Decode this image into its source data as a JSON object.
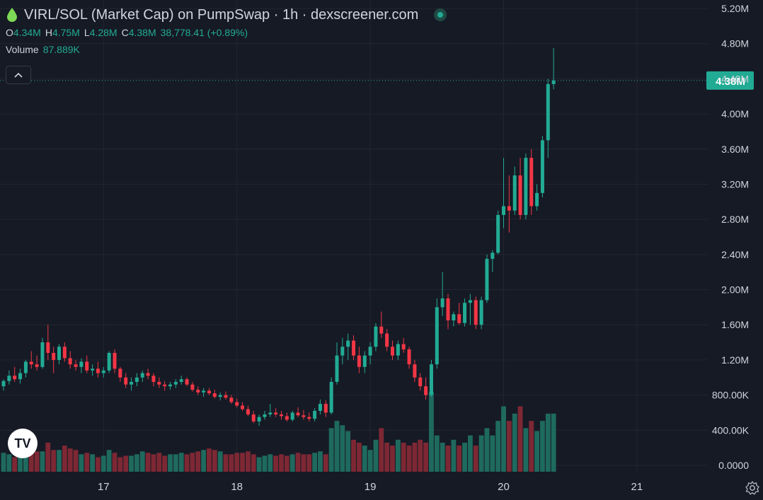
{
  "header": {
    "title": "VIRL/SOL (Market Cap) on PumpSwap · 1h · dexscreener.com",
    "ohlc": [
      {
        "k": "O",
        "v": "4.34M"
      },
      {
        "k": "H",
        "v": "4.75M"
      },
      {
        "k": "L",
        "v": "4.28M"
      },
      {
        "k": "C",
        "v": "4.38M"
      }
    ],
    "change": "38,778.41 (+0.89%)",
    "volume_label": "Volume",
    "volume_value": "87.889K"
  },
  "price_tag": "4.38M",
  "logo_text": "TV",
  "colors": {
    "up": "#22ab94",
    "down": "#f23645",
    "vol_up": "#1f6a5e",
    "vol_down": "#7d2834",
    "tag": "#22ab94"
  },
  "chart_data": {
    "type": "candlestick",
    "interval": "1h",
    "y_ticks": [
      "5.20M",
      "4.80M",
      "4.40M",
      "4.00M",
      "3.60M",
      "3.20M",
      "2.80M",
      "2.40M",
      "2.00M",
      "1.60M",
      "1.20M",
      "800.00K",
      "400.00K",
      "0.0000"
    ],
    "y_tick_values": [
      5.2,
      4.8,
      4.4,
      4.0,
      3.6,
      3.2,
      2.8,
      2.4,
      2.0,
      1.6,
      1.2,
      0.8,
      0.4,
      0.0
    ],
    "x_ticks": [
      {
        "label": "17",
        "i": 18
      },
      {
        "label": "18",
        "i": 42
      },
      {
        "label": "19",
        "i": 66
      },
      {
        "label": "20",
        "i": 90
      },
      {
        "label": "21",
        "i": 114
      }
    ],
    "last_close": 4.38,
    "candles": [
      [
        0.9,
        0.98,
        0.85,
        0.96
      ],
      [
        0.96,
        1.08,
        0.92,
        1.02
      ],
      [
        1.02,
        1.12,
        0.95,
        0.98
      ],
      [
        0.98,
        1.1,
        0.93,
        1.05
      ],
      [
        1.05,
        1.2,
        1.0,
        1.18
      ],
      [
        1.18,
        1.3,
        1.1,
        1.15
      ],
      [
        1.15,
        1.25,
        1.08,
        1.12
      ],
      [
        1.12,
        1.45,
        1.1,
        1.4
      ],
      [
        1.4,
        1.6,
        1.2,
        1.28
      ],
      [
        1.28,
        1.35,
        1.05,
        1.2
      ],
      [
        1.2,
        1.38,
        1.15,
        1.35
      ],
      [
        1.35,
        1.4,
        1.18,
        1.22
      ],
      [
        1.22,
        1.3,
        1.1,
        1.15
      ],
      [
        1.15,
        1.2,
        1.08,
        1.12
      ],
      [
        1.12,
        1.22,
        1.05,
        1.18
      ],
      [
        1.18,
        1.25,
        1.05,
        1.08
      ],
      [
        1.08,
        1.15,
        1.02,
        1.1
      ],
      [
        1.1,
        1.18,
        1.0,
        1.05
      ],
      [
        1.05,
        1.12,
        1.0,
        1.08
      ],
      [
        1.08,
        1.3,
        1.05,
        1.28
      ],
      [
        1.28,
        1.32,
        1.05,
        1.1
      ],
      [
        1.1,
        1.12,
        0.95,
        1.0
      ],
      [
        1.0,
        1.05,
        0.88,
        0.92
      ],
      [
        0.92,
        1.0,
        0.85,
        0.95
      ],
      [
        0.95,
        1.05,
        0.9,
        1.0
      ],
      [
        1.0,
        1.08,
        0.95,
        1.05
      ],
      [
        1.05,
        1.1,
        0.98,
        1.02
      ],
      [
        1.02,
        1.05,
        0.9,
        0.95
      ],
      [
        0.95,
        1.0,
        0.88,
        0.92
      ],
      [
        0.92,
        0.96,
        0.85,
        0.9
      ],
      [
        0.9,
        0.95,
        0.86,
        0.92
      ],
      [
        0.92,
        0.98,
        0.88,
        0.95
      ],
      [
        0.95,
        1.02,
        0.92,
        0.98
      ],
      [
        0.98,
        1.0,
        0.9,
        0.92
      ],
      [
        0.92,
        0.95,
        0.84,
        0.86
      ],
      [
        0.86,
        0.9,
        0.8,
        0.83
      ],
      [
        0.83,
        0.88,
        0.78,
        0.85
      ],
      [
        0.85,
        0.88,
        0.8,
        0.82
      ],
      [
        0.82,
        0.86,
        0.76,
        0.78
      ],
      [
        0.78,
        0.83,
        0.74,
        0.8
      ],
      [
        0.8,
        0.84,
        0.75,
        0.77
      ],
      [
        0.77,
        0.8,
        0.7,
        0.72
      ],
      [
        0.72,
        0.76,
        0.66,
        0.68
      ],
      [
        0.68,
        0.72,
        0.62,
        0.64
      ],
      [
        0.64,
        0.68,
        0.56,
        0.58
      ],
      [
        0.58,
        0.62,
        0.48,
        0.5
      ],
      [
        0.5,
        0.58,
        0.45,
        0.55
      ],
      [
        0.55,
        0.62,
        0.52,
        0.58
      ],
      [
        0.58,
        0.7,
        0.55,
        0.6
      ],
      [
        0.6,
        0.65,
        0.55,
        0.58
      ],
      [
        0.58,
        0.62,
        0.52,
        0.56
      ],
      [
        0.56,
        0.6,
        0.5,
        0.52
      ],
      [
        0.52,
        0.62,
        0.5,
        0.6
      ],
      [
        0.6,
        0.66,
        0.55,
        0.57
      ],
      [
        0.57,
        0.63,
        0.52,
        0.55
      ],
      [
        0.55,
        0.6,
        0.5,
        0.53
      ],
      [
        0.53,
        0.65,
        0.5,
        0.62
      ],
      [
        0.62,
        0.75,
        0.58,
        0.7
      ],
      [
        0.7,
        0.74,
        0.55,
        0.6
      ],
      [
        0.6,
        1.0,
        0.58,
        0.95
      ],
      [
        0.95,
        1.4,
        0.92,
        1.25
      ],
      [
        1.25,
        1.45,
        1.15,
        1.35
      ],
      [
        1.35,
        1.5,
        1.2,
        1.42
      ],
      [
        1.42,
        1.48,
        1.2,
        1.25
      ],
      [
        1.25,
        1.35,
        1.05,
        1.12
      ],
      [
        1.12,
        1.3,
        1.05,
        1.25
      ],
      [
        1.25,
        1.4,
        1.15,
        1.35
      ],
      [
        1.35,
        1.62,
        1.3,
        1.58
      ],
      [
        1.58,
        1.75,
        1.45,
        1.5
      ],
      [
        1.5,
        1.55,
        1.3,
        1.35
      ],
      [
        1.35,
        1.42,
        1.2,
        1.25
      ],
      [
        1.25,
        1.42,
        1.2,
        1.38
      ],
      [
        1.38,
        1.45,
        1.28,
        1.32
      ],
      [
        1.32,
        1.35,
        1.1,
        1.15
      ],
      [
        1.15,
        1.2,
        0.95,
        1.0
      ],
      [
        1.0,
        1.05,
        0.85,
        0.9
      ],
      [
        0.9,
        1.0,
        0.75,
        0.8
      ],
      [
        0.8,
        1.2,
        0.78,
        1.15
      ],
      [
        1.15,
        1.9,
        1.1,
        1.8
      ],
      [
        1.8,
        2.2,
        1.7,
        1.9
      ],
      [
        1.9,
        1.95,
        1.55,
        1.65
      ],
      [
        1.65,
        1.75,
        1.58,
        1.72
      ],
      [
        1.72,
        1.85,
        1.6,
        1.62
      ],
      [
        1.62,
        1.9,
        1.58,
        1.85
      ],
      [
        1.85,
        1.95,
        1.6,
        1.88
      ],
      [
        1.88,
        1.92,
        1.55,
        1.6
      ],
      [
        1.6,
        1.92,
        1.55,
        1.88
      ],
      [
        1.88,
        2.4,
        1.85,
        2.35
      ],
      [
        2.35,
        2.45,
        2.2,
        2.42
      ],
      [
        2.42,
        2.9,
        2.4,
        2.85
      ],
      [
        2.85,
        3.5,
        2.7,
        2.95
      ],
      [
        2.95,
        3.3,
        2.65,
        2.9
      ],
      [
        2.9,
        3.4,
        2.85,
        3.3
      ],
      [
        3.3,
        3.5,
        2.8,
        2.85
      ],
      [
        2.85,
        3.55,
        2.8,
        3.5
      ],
      [
        3.5,
        3.6,
        2.85,
        2.95
      ],
      [
        2.95,
        3.2,
        2.9,
        3.1
      ],
      [
        3.1,
        3.75,
        3.05,
        3.7
      ],
      [
        3.7,
        4.4,
        3.5,
        4.34
      ],
      [
        4.34,
        4.75,
        4.28,
        4.38
      ]
    ],
    "volumes": [
      0.13,
      0.12,
      0.1,
      0.12,
      0.15,
      0.2,
      0.14,
      0.14,
      0.2,
      0.15,
      0.15,
      0.18,
      0.16,
      0.15,
      0.12,
      0.13,
      0.12,
      0.1,
      0.11,
      0.15,
      0.13,
      0.1,
      0.11,
      0.11,
      0.12,
      0.14,
      0.13,
      0.12,
      0.13,
      0.11,
      0.12,
      0.12,
      0.13,
      0.12,
      0.13,
      0.14,
      0.15,
      0.16,
      0.15,
      0.14,
      0.12,
      0.12,
      0.13,
      0.13,
      0.14,
      0.12,
      0.1,
      0.11,
      0.12,
      0.11,
      0.12,
      0.11,
      0.12,
      0.13,
      0.12,
      0.12,
      0.13,
      0.14,
      0.12,
      0.3,
      0.35,
      0.32,
      0.28,
      0.22,
      0.2,
      0.18,
      0.15,
      0.22,
      0.3,
      0.2,
      0.18,
      0.22,
      0.2,
      0.18,
      0.2,
      0.22,
      0.2,
      0.55,
      0.25,
      0.2,
      0.18,
      0.22,
      0.18,
      0.2,
      0.25,
      0.18,
      0.25,
      0.3,
      0.25,
      0.35,
      0.45,
      0.35,
      0.4,
      0.45,
      0.3,
      0.35,
      0.28,
      0.35,
      0.4,
      0.4
    ],
    "volume_ylim": [
      0,
      1.3
    ],
    "ylim": [
      0,
      5.2
    ]
  }
}
